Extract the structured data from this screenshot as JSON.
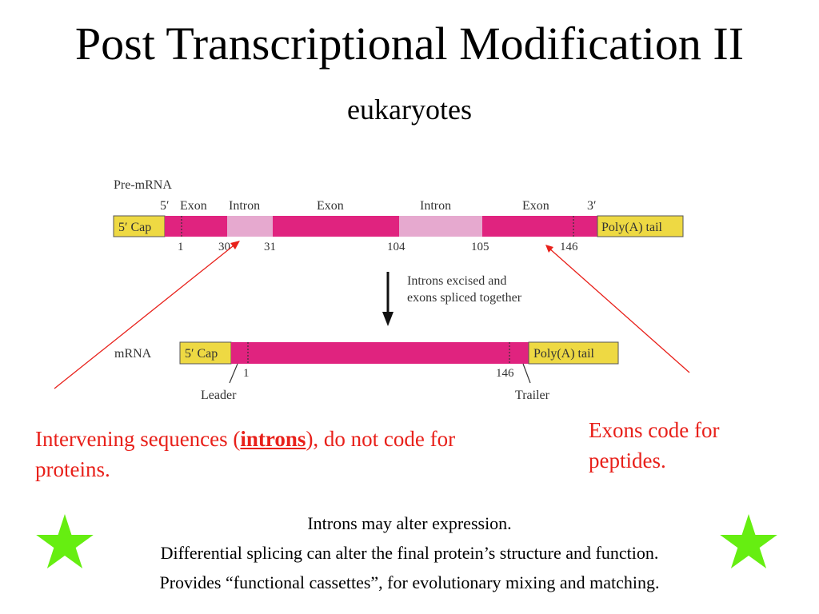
{
  "title": "Post Transcriptional Modification II",
  "subtitle": "eukaryotes",
  "diagram": {
    "pre_mrna_label": "Pre-mRNA",
    "five_prime": "5′",
    "three_prime": "3′",
    "segments_top": [
      "Exon",
      "Intron",
      "Exon",
      "Intron",
      "Exon"
    ],
    "cap": "5′ Cap",
    "poly_a": "Poly(A) tail",
    "positions": [
      "1",
      "30",
      "31",
      "104",
      "105",
      "146"
    ],
    "process_line1": "Introns excised and",
    "process_line2": "exons spliced together",
    "mrna_label": "mRNA",
    "mrna_positions": [
      "1",
      "146"
    ],
    "leader": "Leader",
    "trailer": "Trailer",
    "colors": {
      "exon": "#e0237f",
      "intron": "#e6a9cf",
      "cap": "#eed943",
      "arrow": "#e8201a"
    }
  },
  "annotations": {
    "introns_pre": "Intervening sequences (",
    "introns_word": "introns",
    "introns_post": "), do not code for proteins.",
    "exons": "Exons code for peptides."
  },
  "notes": [
    "Introns may alter expression.",
    "Differential splicing can alter the final protein’s structure and function.",
    "Provides “functional cassettes”, for evolutionary mixing and matching."
  ],
  "icons": [
    "green-star-icon",
    "green-star-icon"
  ]
}
